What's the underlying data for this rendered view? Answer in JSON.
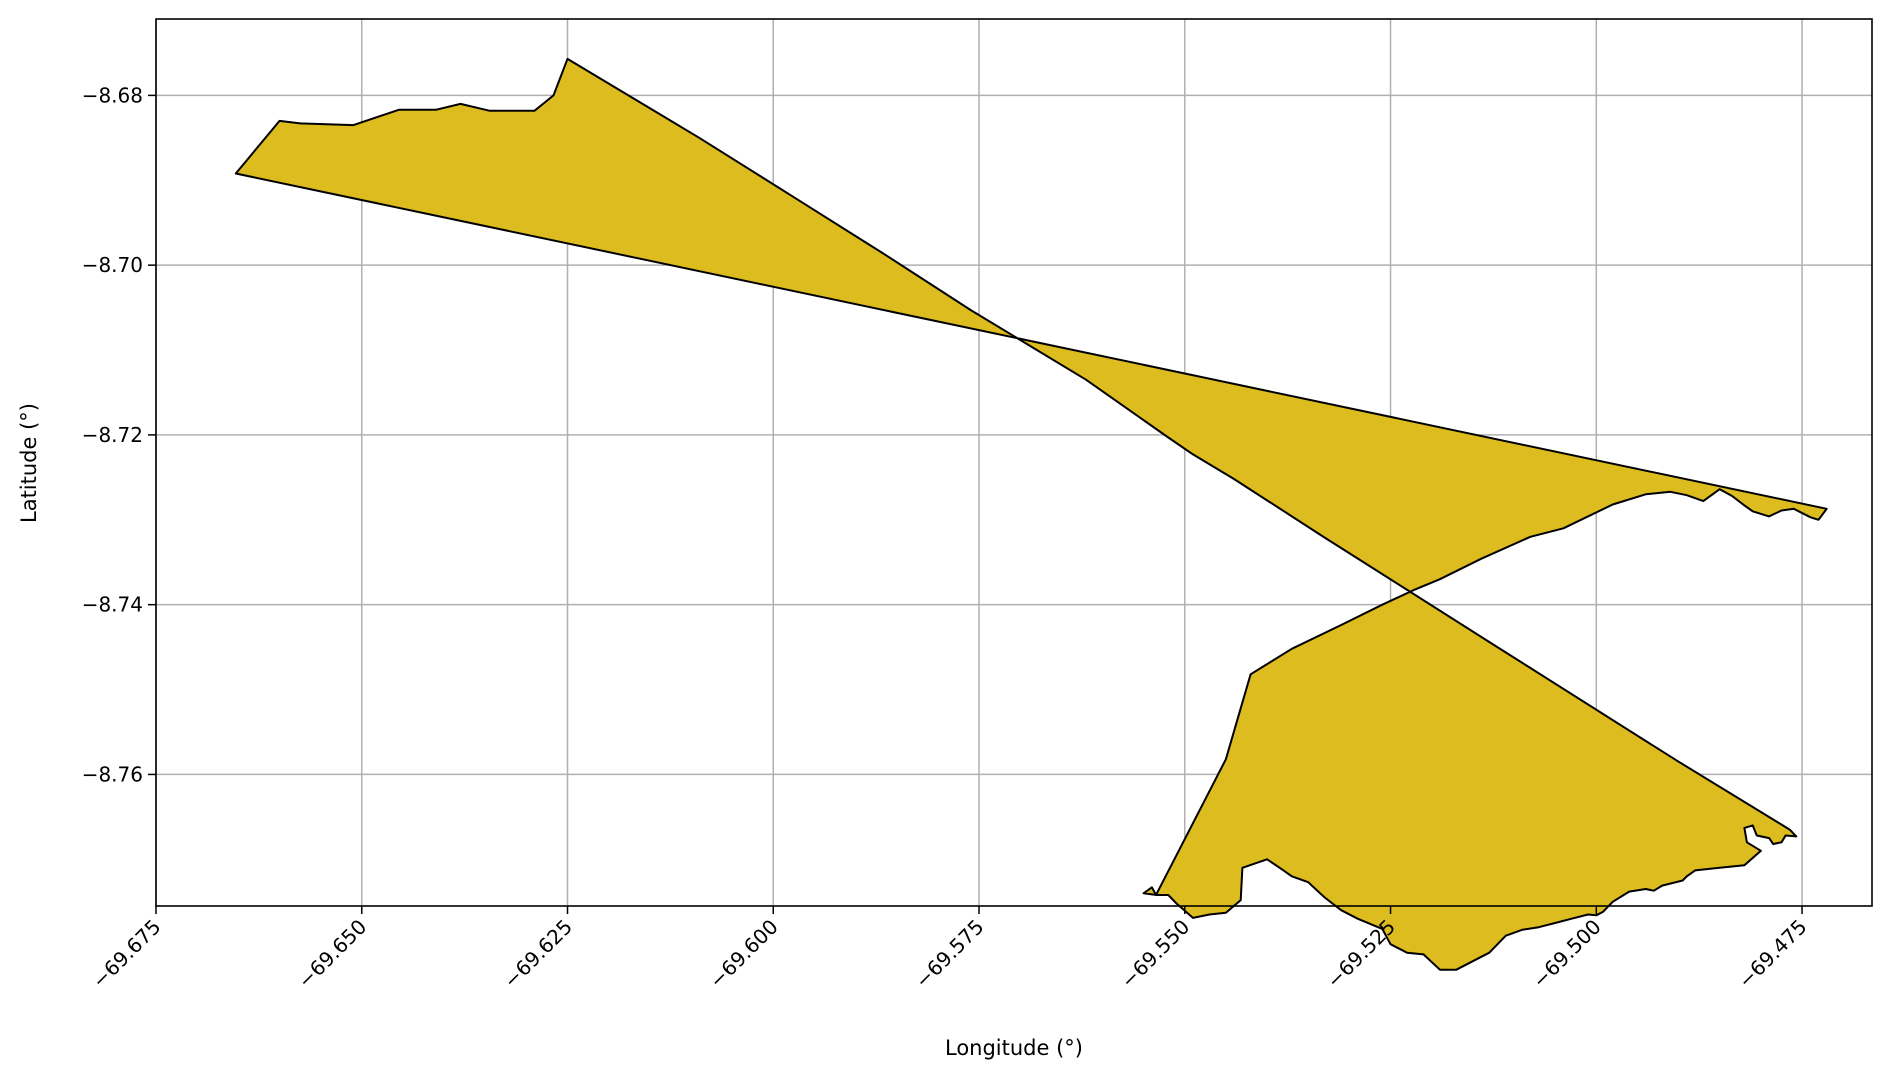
{
  "chart_data": {
    "type": "map",
    "xlabel": "Longitude (°)",
    "ylabel": "Latitude (°)",
    "xlim": [
      -69.675,
      -69.4665
    ],
    "ylim": [
      -8.7755,
      -8.671
    ],
    "x_ticks": [
      -69.675,
      -69.65,
      -69.625,
      -69.6,
      -69.575,
      -69.55,
      -69.525,
      -69.5,
      -69.475
    ],
    "x_tick_labels": [
      "−69.675",
      "−69.650",
      "−69.625",
      "−69.600",
      "−69.575",
      "−69.550",
      "−69.525",
      "−69.500",
      "−69.475"
    ],
    "y_ticks": [
      -8.68,
      -8.7,
      -8.72,
      -8.74,
      -8.76
    ],
    "y_tick_labels": [
      "−8.68",
      "−8.70",
      "−8.72",
      "−8.74",
      "−8.76"
    ],
    "grid": true,
    "fill_color": "#DDBC1F",
    "edge_color": "#000000",
    "polygon": [
      [
        -69.6653,
        -8.6892
      ],
      [
        -69.66,
        -8.683
      ],
      [
        -69.6575,
        -8.6833
      ],
      [
        -69.651,
        -8.6835
      ],
      [
        -69.6455,
        -8.6817
      ],
      [
        -69.641,
        -8.6817
      ],
      [
        -69.638,
        -8.681
      ],
      [
        -69.6345,
        -8.6818
      ],
      [
        -69.629,
        -8.6818
      ],
      [
        -69.6267,
        -8.68
      ],
      [
        -69.625,
        -8.6757
      ],
      [
        -69.609,
        -8.685
      ],
      [
        -69.597,
        -8.6923
      ],
      [
        -69.587,
        -8.6984
      ],
      [
        -69.576,
        -8.7053
      ],
      [
        -69.562,
        -8.7135
      ],
      [
        -69.552,
        -8.7203
      ],
      [
        -69.549,
        -8.7223
      ],
      [
        -69.544,
        -8.7252
      ],
      [
        -69.533,
        -8.7321
      ],
      [
        -69.513,
        -8.7444
      ],
      [
        -69.49,
        -8.7585
      ],
      [
        -69.4765,
        -8.7665
      ],
      [
        -69.4757,
        -8.7673
      ],
      [
        -69.477,
        -8.7672
      ],
      [
        -69.4775,
        -8.768
      ],
      [
        -69.4785,
        -8.7682
      ],
      [
        -69.479,
        -8.7675
      ],
      [
        -69.4805,
        -8.7672
      ],
      [
        -69.481,
        -8.766
      ],
      [
        -69.482,
        -8.7663
      ],
      [
        -69.4817,
        -8.768
      ],
      [
        -69.48,
        -8.769
      ],
      [
        -69.482,
        -8.7707
      ],
      [
        -69.485,
        -8.771
      ],
      [
        -69.488,
        -8.7713
      ],
      [
        -69.489,
        -8.772
      ],
      [
        -69.4895,
        -8.7725
      ],
      [
        -69.492,
        -8.7731
      ],
      [
        -69.493,
        -8.7737
      ],
      [
        -69.494,
        -8.7735
      ],
      [
        -69.496,
        -8.7738
      ],
      [
        -69.498,
        -8.775
      ],
      [
        -69.4992,
        -8.7762
      ],
      [
        -69.5,
        -8.7766
      ],
      [
        -69.501,
        -8.7765
      ],
      [
        -69.503,
        -8.777
      ],
      [
        -69.505,
        -8.7775
      ],
      [
        -69.507,
        -8.778
      ],
      [
        -69.509,
        -8.7783
      ],
      [
        -69.511,
        -8.779
      ],
      [
        -69.513,
        -8.781
      ],
      [
        -69.515,
        -8.782
      ],
      [
        -69.517,
        -8.783
      ],
      [
        -69.519,
        -8.783
      ],
      [
        -69.521,
        -8.7812
      ],
      [
        -69.523,
        -8.781
      ],
      [
        -69.525,
        -8.78
      ],
      [
        -69.526,
        -8.7782
      ],
      [
        -69.529,
        -8.777
      ],
      [
        -69.531,
        -8.776
      ],
      [
        -69.533,
        -8.7745
      ],
      [
        -69.535,
        -8.7727
      ],
      [
        -69.537,
        -8.772
      ],
      [
        -69.538,
        -8.7713
      ],
      [
        -69.54,
        -8.77
      ],
      [
        -69.543,
        -8.771
      ],
      [
        -69.5432,
        -8.7748
      ],
      [
        -69.545,
        -8.7763
      ],
      [
        -69.547,
        -8.7765
      ],
      [
        -69.549,
        -8.7769
      ],
      [
        -69.551,
        -8.7752
      ],
      [
        -69.552,
        -8.7742
      ],
      [
        -69.5534,
        -8.7742
      ],
      [
        -69.555,
        -8.774
      ],
      [
        -69.554,
        -8.7733
      ],
      [
        -69.5535,
        -8.7742
      ],
      [
        -69.545,
        -8.7582
      ],
      [
        -69.542,
        -8.7482
      ],
      [
        -69.537,
        -8.7452
      ],
      [
        -69.531,
        -8.7424
      ],
      [
        -69.526,
        -8.74
      ],
      [
        -69.522,
        -8.7382
      ],
      [
        -69.519,
        -8.737
      ],
      [
        -69.514,
        -8.7346
      ],
      [
        -69.508,
        -8.732
      ],
      [
        -69.504,
        -8.731
      ],
      [
        -69.498,
        -8.7282
      ],
      [
        -69.494,
        -8.727
      ],
      [
        -69.491,
        -8.7267
      ],
      [
        -69.489,
        -8.7271
      ],
      [
        -69.487,
        -8.7278
      ],
      [
        -69.485,
        -8.7264
      ],
      [
        -69.4835,
        -8.7272
      ],
      [
        -69.482,
        -8.7283
      ],
      [
        -69.481,
        -8.729
      ],
      [
        -69.479,
        -8.7296
      ],
      [
        -69.4775,
        -8.7289
      ],
      [
        -69.476,
        -8.7287
      ],
      [
        -69.474,
        -8.7297
      ],
      [
        -69.473,
        -8.73
      ],
      [
        -69.472,
        -8.7287
      ]
    ]
  }
}
